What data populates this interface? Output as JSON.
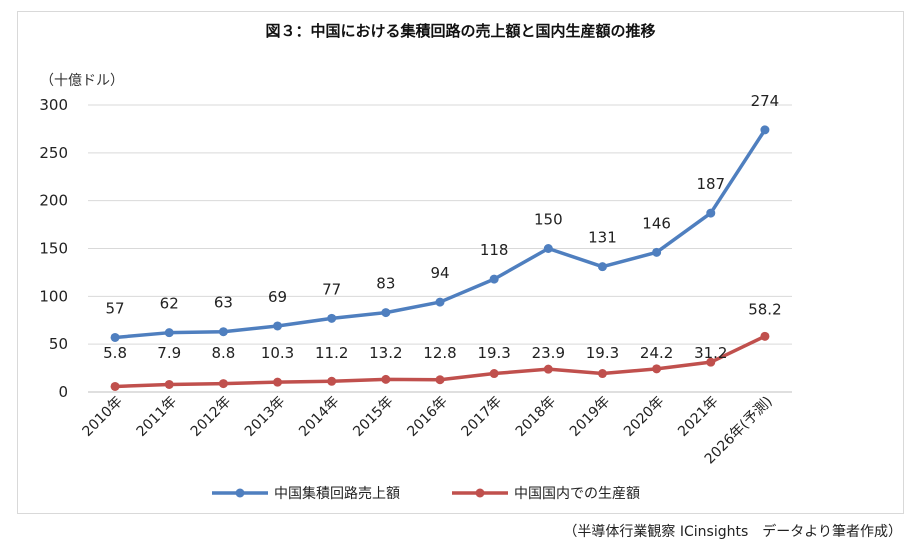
{
  "chart_data": {
    "type": "line",
    "title": "図３：中国における集積回路の売上額と国内生産額の推移",
    "ylabel": "（十億ドル）",
    "ylim": [
      0,
      300
    ],
    "yticks": [
      0,
      50,
      100,
      150,
      200,
      250,
      300
    ],
    "grid": true,
    "categories": [
      "2010年",
      "2011年",
      "2012年",
      "2013年",
      "2014年",
      "2015年",
      "2016年",
      "2017年",
      "2018年",
      "2019年",
      "2020年",
      "2021年",
      "2026年(予測)"
    ],
    "series": [
      {
        "name": "中国集積回路売上額",
        "color": "#4f7fbf",
        "values": [
          57,
          62,
          63,
          69,
          77,
          83,
          94,
          118,
          150,
          131,
          146,
          187,
          274
        ],
        "labels": [
          "57",
          "62",
          "63",
          "69",
          "77",
          "83",
          "94",
          "118",
          "150",
          "131",
          "146",
          "187",
          "274"
        ]
      },
      {
        "name": "中国国内での生産額",
        "color": "#c0504d",
        "values": [
          5.8,
          7.9,
          8.8,
          10.3,
          11.2,
          13.2,
          12.8,
          19.3,
          23.9,
          19.3,
          24.2,
          31.2,
          58.2
        ],
        "labels": [
          "5.8",
          "7.9",
          "8.8",
          "10.3",
          "11.2",
          "13.2",
          "12.8",
          "19.3",
          "23.9",
          "19.3",
          "24.2",
          "31.2",
          "58.2"
        ]
      }
    ],
    "legend_position": "bottom",
    "source_note": "（半導体行業観察 ICinsights　データより筆者作成）"
  }
}
